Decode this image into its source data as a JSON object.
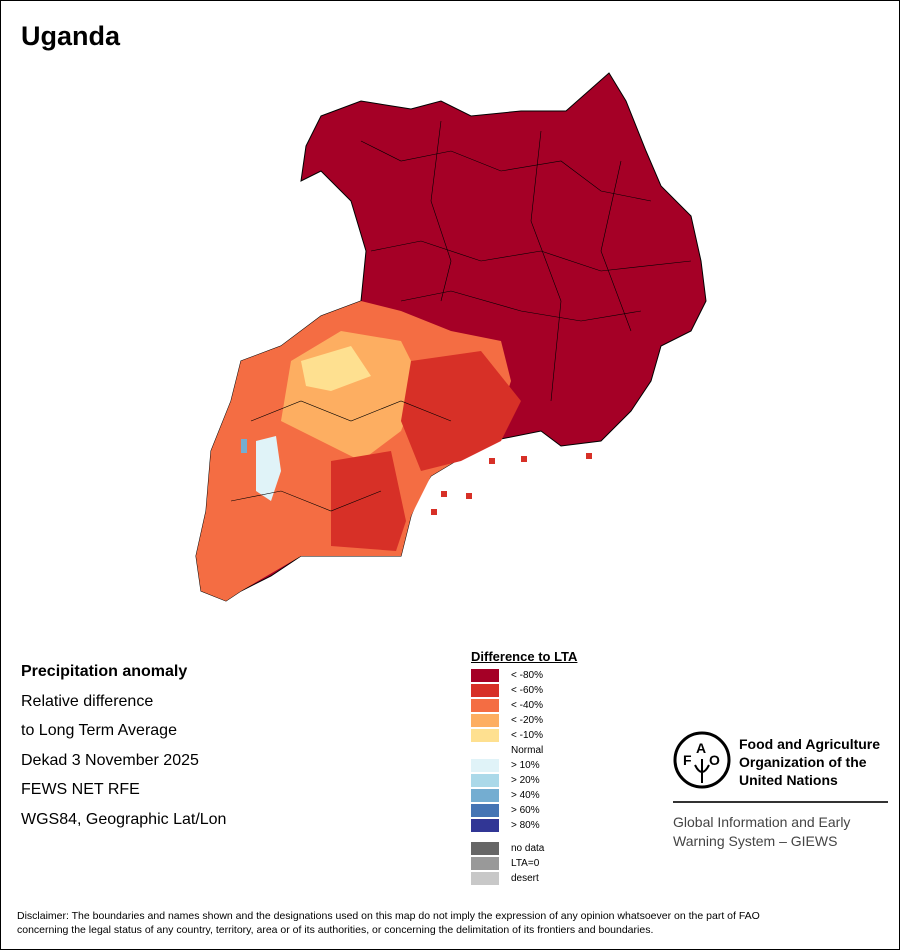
{
  "title": "Uganda",
  "info": [
    "Precipitation anomaly",
    "Relative difference",
    "to Long Term Average",
    "Dekad 3 November 2025",
    "FEWS NET RFE",
    "WGS84, Geographic Lat/Lon"
  ],
  "legend": {
    "heading": "Difference to LTA",
    "items": [
      {
        "label": "< -80%",
        "color": "#a50026"
      },
      {
        "label": "< -60%",
        "color": "#d73027"
      },
      {
        "label": "< -40%",
        "color": "#f46d43"
      },
      {
        "label": "< -20%",
        "color": "#fdae61"
      },
      {
        "label": "< -10%",
        "color": "#fee090"
      },
      {
        "label": "Normal",
        "color": "#ffffff"
      },
      {
        "label": "> 10%",
        "color": "#e0f3f8"
      },
      {
        "label": "> 20%",
        "color": "#abd9e9"
      },
      {
        "label": "> 40%",
        "color": "#74add1"
      },
      {
        "label": "> 60%",
        "color": "#4575b4"
      },
      {
        "label": "> 80%",
        "color": "#313695"
      }
    ],
    "extra": [
      {
        "label": "no data",
        "color": "#666666"
      },
      {
        "label": "LTA=0",
        "color": "#999999"
      },
      {
        "label": "desert",
        "color": "#c8c8c8"
      }
    ]
  },
  "logo": {
    "name": [
      "Food and Agriculture",
      "Organization of the",
      "United Nations"
    ],
    "sub": [
      "Global Information and Early",
      "Warning System – GIEWS"
    ],
    "letters": "FAO",
    "motto": "FIAT PANIS"
  },
  "disclaimer": [
    "Disclaimer: The boundaries and names shown and the designations used on this map do not imply the expression of any opinion whatsoever on the part of FAO",
    "concerning the legal status of any country, territory, area or of its authorities, or concerning the delimitation of its frontiers and boundaries."
  ]
}
